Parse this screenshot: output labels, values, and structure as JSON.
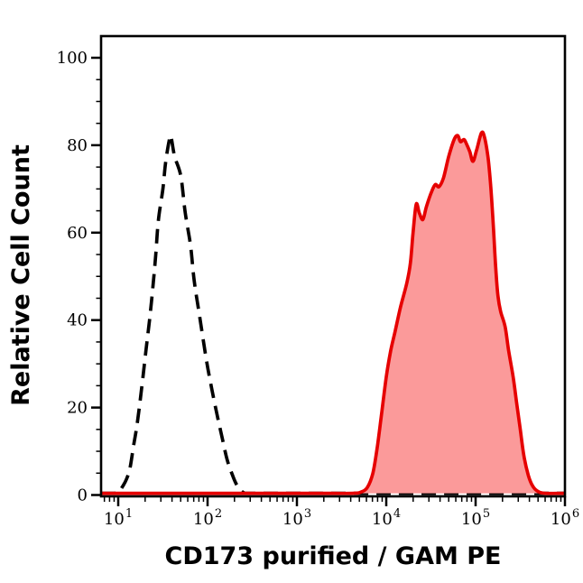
{
  "window": {
    "background": "#ffffff"
  },
  "chart_data": {
    "type": "area",
    "subtype": "flow-cytometry-histogram-overlay",
    "title": "",
    "xlabel": "CD173 purified / GAM PE",
    "ylabel": "Relative Cell Count",
    "x_scale": "log10",
    "xlim_log10": [
      0.81,
      5.99
    ],
    "x_ticks": {
      "base": "10",
      "exponents": [
        1,
        2,
        3,
        4,
        5,
        6
      ]
    },
    "x_minor_subdivisions": [
      2,
      3,
      4,
      5,
      6,
      7,
      8,
      9
    ],
    "ylim": [
      0,
      104.8
    ],
    "y_ticks": [
      0,
      20,
      40,
      60,
      80,
      100
    ],
    "y_minor_step": 5,
    "grid": false,
    "legend": "none",
    "frame": {
      "color": "#000000",
      "full_box": true
    },
    "series": [
      {
        "name": "dashed-black-outline-histogram",
        "type": "line",
        "stroke": "#000000",
        "stroke_width": 3.7,
        "dash": [
          16,
          9
        ],
        "fill": "none",
        "points_log10x_value": [
          [
            0.81,
            0.4
          ],
          [
            0.93,
            0.4
          ],
          [
            1.0,
            0.6
          ],
          [
            1.05,
            2
          ],
          [
            1.09,
            3.5
          ],
          [
            1.13,
            6
          ],
          [
            1.17,
            11
          ],
          [
            1.21,
            16
          ],
          [
            1.26,
            24
          ],
          [
            1.31,
            33
          ],
          [
            1.35,
            40
          ],
          [
            1.39,
            48
          ],
          [
            1.42,
            55
          ],
          [
            1.45,
            63
          ],
          [
            1.5,
            70
          ],
          [
            1.53,
            76
          ],
          [
            1.57,
            81
          ],
          [
            1.59,
            82
          ],
          [
            1.63,
            77.5
          ],
          [
            1.7,
            73
          ],
          [
            1.75,
            64.5
          ],
          [
            1.81,
            57
          ],
          [
            1.85,
            49
          ],
          [
            1.91,
            41
          ],
          [
            1.99,
            30.5
          ],
          [
            2.05,
            24
          ],
          [
            2.11,
            18
          ],
          [
            2.17,
            12.5
          ],
          [
            2.22,
            8
          ],
          [
            2.28,
            4.5
          ],
          [
            2.33,
            2.2
          ],
          [
            2.4,
            0.6
          ],
          [
            2.5,
            0.4
          ],
          [
            3.2,
            0.4
          ],
          [
            4.0,
            0.4
          ],
          [
            4.8,
            0.4
          ],
          [
            5.5,
            0.4
          ],
          [
            5.99,
            0.4
          ]
        ]
      },
      {
        "name": "red-filled-histogram",
        "type": "area",
        "stroke": "#e60000",
        "stroke_width": 3.7,
        "dash": null,
        "fill": "#fb9a9a",
        "points_log10x_value": [
          [
            0.81,
            0.4
          ],
          [
            1.6,
            0.4
          ],
          [
            2.4,
            0.4
          ],
          [
            3.2,
            0.4
          ],
          [
            3.62,
            0.4
          ],
          [
            3.72,
            0.7
          ],
          [
            3.79,
            1.8
          ],
          [
            3.85,
            5
          ],
          [
            3.9,
            11
          ],
          [
            3.95,
            19
          ],
          [
            4.0,
            27
          ],
          [
            4.05,
            33
          ],
          [
            4.1,
            37.5
          ],
          [
            4.16,
            43
          ],
          [
            4.23,
            48.5
          ],
          [
            4.27,
            53
          ],
          [
            4.3,
            60
          ],
          [
            4.335,
            66.5
          ],
          [
            4.37,
            64.5
          ],
          [
            4.41,
            63
          ],
          [
            4.45,
            66
          ],
          [
            4.51,
            69.5
          ],
          [
            4.55,
            71
          ],
          [
            4.59,
            70.5
          ],
          [
            4.64,
            72.5
          ],
          [
            4.7,
            77.5
          ],
          [
            4.76,
            81.3
          ],
          [
            4.8,
            82.2
          ],
          [
            4.83,
            80.8
          ],
          [
            4.87,
            81.3
          ],
          [
            4.9,
            80.2
          ],
          [
            4.935,
            78.5
          ],
          [
            4.97,
            76.3
          ],
          [
            5.01,
            78.8
          ],
          [
            5.065,
            82.8
          ],
          [
            5.1,
            81.8
          ],
          [
            5.14,
            77
          ],
          [
            5.17,
            70.5
          ],
          [
            5.2,
            61
          ],
          [
            5.225,
            52
          ],
          [
            5.25,
            45.5
          ],
          [
            5.28,
            42
          ],
          [
            5.33,
            38.5
          ],
          [
            5.37,
            33
          ],
          [
            5.42,
            27
          ],
          [
            5.46,
            21
          ],
          [
            5.5,
            15
          ],
          [
            5.54,
            9
          ],
          [
            5.59,
            4.5
          ],
          [
            5.64,
            2
          ],
          [
            5.7,
            0.8
          ],
          [
            5.78,
            0.4
          ],
          [
            5.99,
            0.4
          ]
        ]
      }
    ]
  }
}
